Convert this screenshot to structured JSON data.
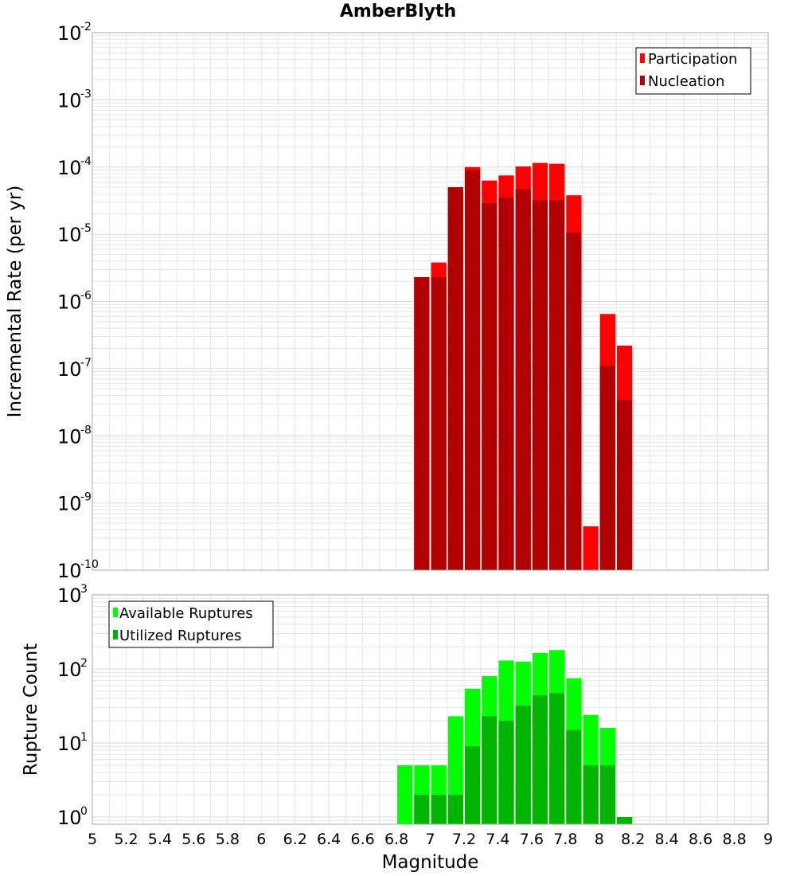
{
  "chart_title": "AmberBlyth",
  "colors": {
    "participation": "#ff0000",
    "nucleation": "#b00000",
    "available": "#00ff00",
    "utilized": "#00b400",
    "grid": "#e6e6e6",
    "frame": "#aaaaaa"
  },
  "chart_data": [
    {
      "type": "bar",
      "title": "AmberBlyth",
      "xlabel": "",
      "ylabel": "Incremental Rate (per yr)",
      "yscale": "log",
      "xlim": [
        5,
        9
      ],
      "ylim": [
        1e-10,
        0.01
      ],
      "grid": true,
      "legend_position": "top-right",
      "bin_width": 0.1,
      "x": [
        6.95,
        7.05,
        7.15,
        7.25,
        7.35,
        7.45,
        7.55,
        7.65,
        7.75,
        7.85,
        7.95,
        8.05,
        8.15
      ],
      "series": [
        {
          "name": "Participation",
          "values": [
            2.3e-06,
            3.8e-06,
            5e-05,
            0.0001,
            6.3e-05,
            7.5e-05,
            0.000102,
            0.000115,
            0.000112,
            3.8e-05,
            4.5e-10,
            6.5e-07,
            2.2e-07
          ]
        },
        {
          "name": "Nucleation",
          "values": [
            2.3e-06,
            2.3e-06,
            5e-05,
            9e-05,
            2.9e-05,
            3.5e-05,
            4.7e-05,
            3.2e-05,
            3.2e-05,
            1.05e-05,
            null,
            1.1e-07,
            3.4e-08
          ]
        }
      ],
      "y_ticks": [
        {
          "m": "10",
          "e": "-2"
        },
        {
          "m": "10",
          "e": "-3"
        },
        {
          "m": "10",
          "e": "-4"
        },
        {
          "m": "10",
          "e": "-5"
        },
        {
          "m": "10",
          "e": "-6"
        },
        {
          "m": "10",
          "e": "-7"
        },
        {
          "m": "10",
          "e": "-8"
        },
        {
          "m": "10",
          "e": "-9"
        },
        {
          "m": "10",
          "e": "-10"
        }
      ]
    },
    {
      "type": "bar",
      "title": "",
      "xlabel": "Magnitude",
      "ylabel": "Rupture Count",
      "yscale": "log",
      "xlim": [
        5,
        9
      ],
      "ylim": [
        0.8,
        1000
      ],
      "grid": true,
      "legend_position": "top-left",
      "bin_width": 0.1,
      "x": [
        6.85,
        6.95,
        7.05,
        7.15,
        7.25,
        7.35,
        7.45,
        7.55,
        7.65,
        7.75,
        7.85,
        7.95,
        8.05,
        8.15
      ],
      "series": [
        {
          "name": "Available Ruptures",
          "values": [
            5,
            5,
            5,
            23,
            54,
            80,
            130,
            125,
            165,
            180,
            75,
            24,
            16,
            1
          ]
        },
        {
          "name": "Utilized Ruptures",
          "values": [
            null,
            2,
            2,
            2,
            9,
            23,
            20,
            32,
            44,
            47,
            15,
            5,
            5,
            1
          ]
        }
      ],
      "y_ticks": [
        {
          "m": "10",
          "e": "3"
        },
        {
          "m": "10",
          "e": "2"
        },
        {
          "m": "10",
          "e": "1"
        },
        {
          "m": "10",
          "e": "0"
        }
      ],
      "x_tick_labels": [
        "5",
        "5.2",
        "5.4",
        "5.6",
        "5.8",
        "6",
        "6.2",
        "6.4",
        "6.6",
        "6.8",
        "7",
        "7.2",
        "7.4",
        "7.6",
        "7.8",
        "8",
        "8.2",
        "8.4",
        "8.6",
        "8.8",
        "9"
      ]
    }
  ]
}
